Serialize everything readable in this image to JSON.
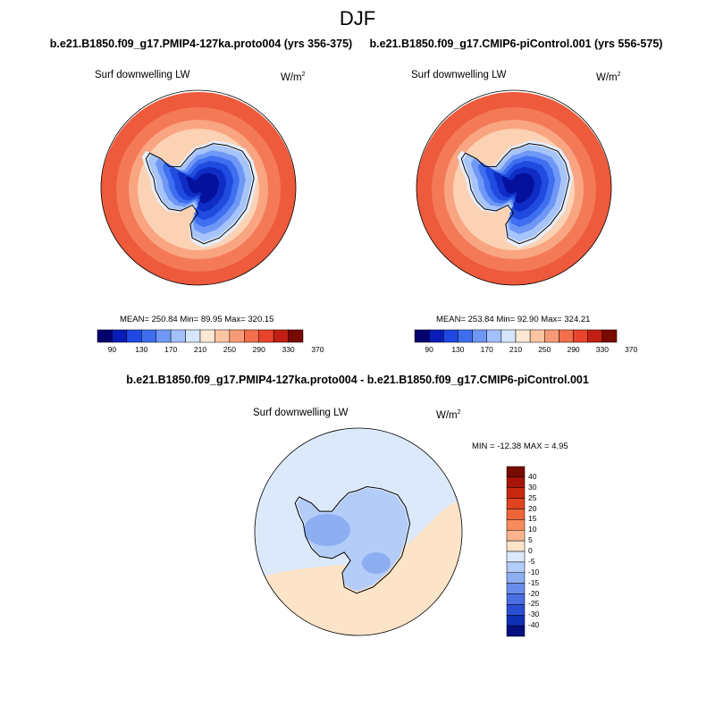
{
  "figure": {
    "season": "DJF"
  },
  "panels": [
    {
      "title": "b.e21.B1850.f09_g17.PMIP4-127ka.proto004 (yrs 356-375)",
      "variable": "Surf downwelling LW",
      "units_base": "W/m",
      "units_exp": "2",
      "stats": "MEAN= 250.84  Min=  89.95  Max= 320.15"
    },
    {
      "title": "b.e21.B1850.f09_g17.CMIP6-piControl.001 (yrs 556-575)",
      "variable": "Surf downwelling LW",
      "units_base": "W/m",
      "units_exp": "2",
      "stats": "MEAN= 253.84  Min=  92.90  Max= 324.21"
    },
    {
      "title": "b.e21.B1850.f09_g17.PMIP4-127ka.proto004 - b.e21.B1850.f09_g17.CMIP6-piControl.001",
      "variable": "Surf downwelling LW",
      "units_base": "W/m",
      "units_exp": "2",
      "stats": "MIN = -12.38 MAX =   4.95"
    }
  ],
  "chart_data": [
    {
      "type": "heatmap",
      "projection": "south-polar-stereographic",
      "title": "b.e21.B1850.f09_g17.PMIP4-127ka.proto004 (yrs 356-375)",
      "variable": "Surf downwelling LW",
      "units": "W/m^2",
      "mean": 250.84,
      "min": 89.95,
      "max": 320.15,
      "colorbar_ticks": [
        90,
        130,
        170,
        210,
        250,
        290,
        330,
        370
      ],
      "colorbar_colors": [
        "#04006e",
        "#0a1cb8",
        "#1e48df",
        "#3c6eee",
        "#6f97f5",
        "#a4c0fa",
        "#d6e6fc",
        "#fde8d3",
        "#fbc4a3",
        "#f79b77",
        "#f26e4c",
        "#e8452c",
        "#c11f14",
        "#780a00"
      ]
    },
    {
      "type": "heatmap",
      "projection": "south-polar-stereographic",
      "title": "b.e21.B1850.f09_g17.CMIP6-piControl.001 (yrs 556-575)",
      "variable": "Surf downwelling LW",
      "units": "W/m^2",
      "mean": 253.84,
      "min": 92.9,
      "max": 324.21,
      "colorbar_ticks": [
        90,
        130,
        170,
        210,
        250,
        290,
        330,
        370
      ],
      "colorbar_colors": [
        "#04006e",
        "#0a1cb8",
        "#1e48df",
        "#3c6eee",
        "#6f97f5",
        "#a4c0fa",
        "#d6e6fc",
        "#fde8d3",
        "#fbc4a3",
        "#f79b77",
        "#f26e4c",
        "#e8452c",
        "#c11f14",
        "#780a00"
      ]
    },
    {
      "type": "heatmap",
      "projection": "south-polar-stereographic",
      "title": "b.e21.B1850.f09_g17.PMIP4-127ka.proto004 - b.e21.B1850.f09_g17.CMIP6-piControl.001",
      "variable": "Surf downwelling LW",
      "units": "W/m^2",
      "min": -12.38,
      "max": 4.95,
      "colorbar_ticks": [
        40,
        30,
        25,
        20,
        15,
        10,
        5,
        0,
        -5,
        -10,
        -15,
        -20,
        -25,
        -30,
        -40
      ],
      "colorbar_colors": [
        "#780a00",
        "#a8140a",
        "#c8280f",
        "#e0431f",
        "#f0643a",
        "#f78b5c",
        "#fbb48f",
        "#fde4c8",
        "#dce9fb",
        "#b4ccf8",
        "#8eaef2",
        "#6a8ded",
        "#4a6fe3",
        "#2a4fd2",
        "#0f2fb5",
        "#021080"
      ]
    }
  ]
}
